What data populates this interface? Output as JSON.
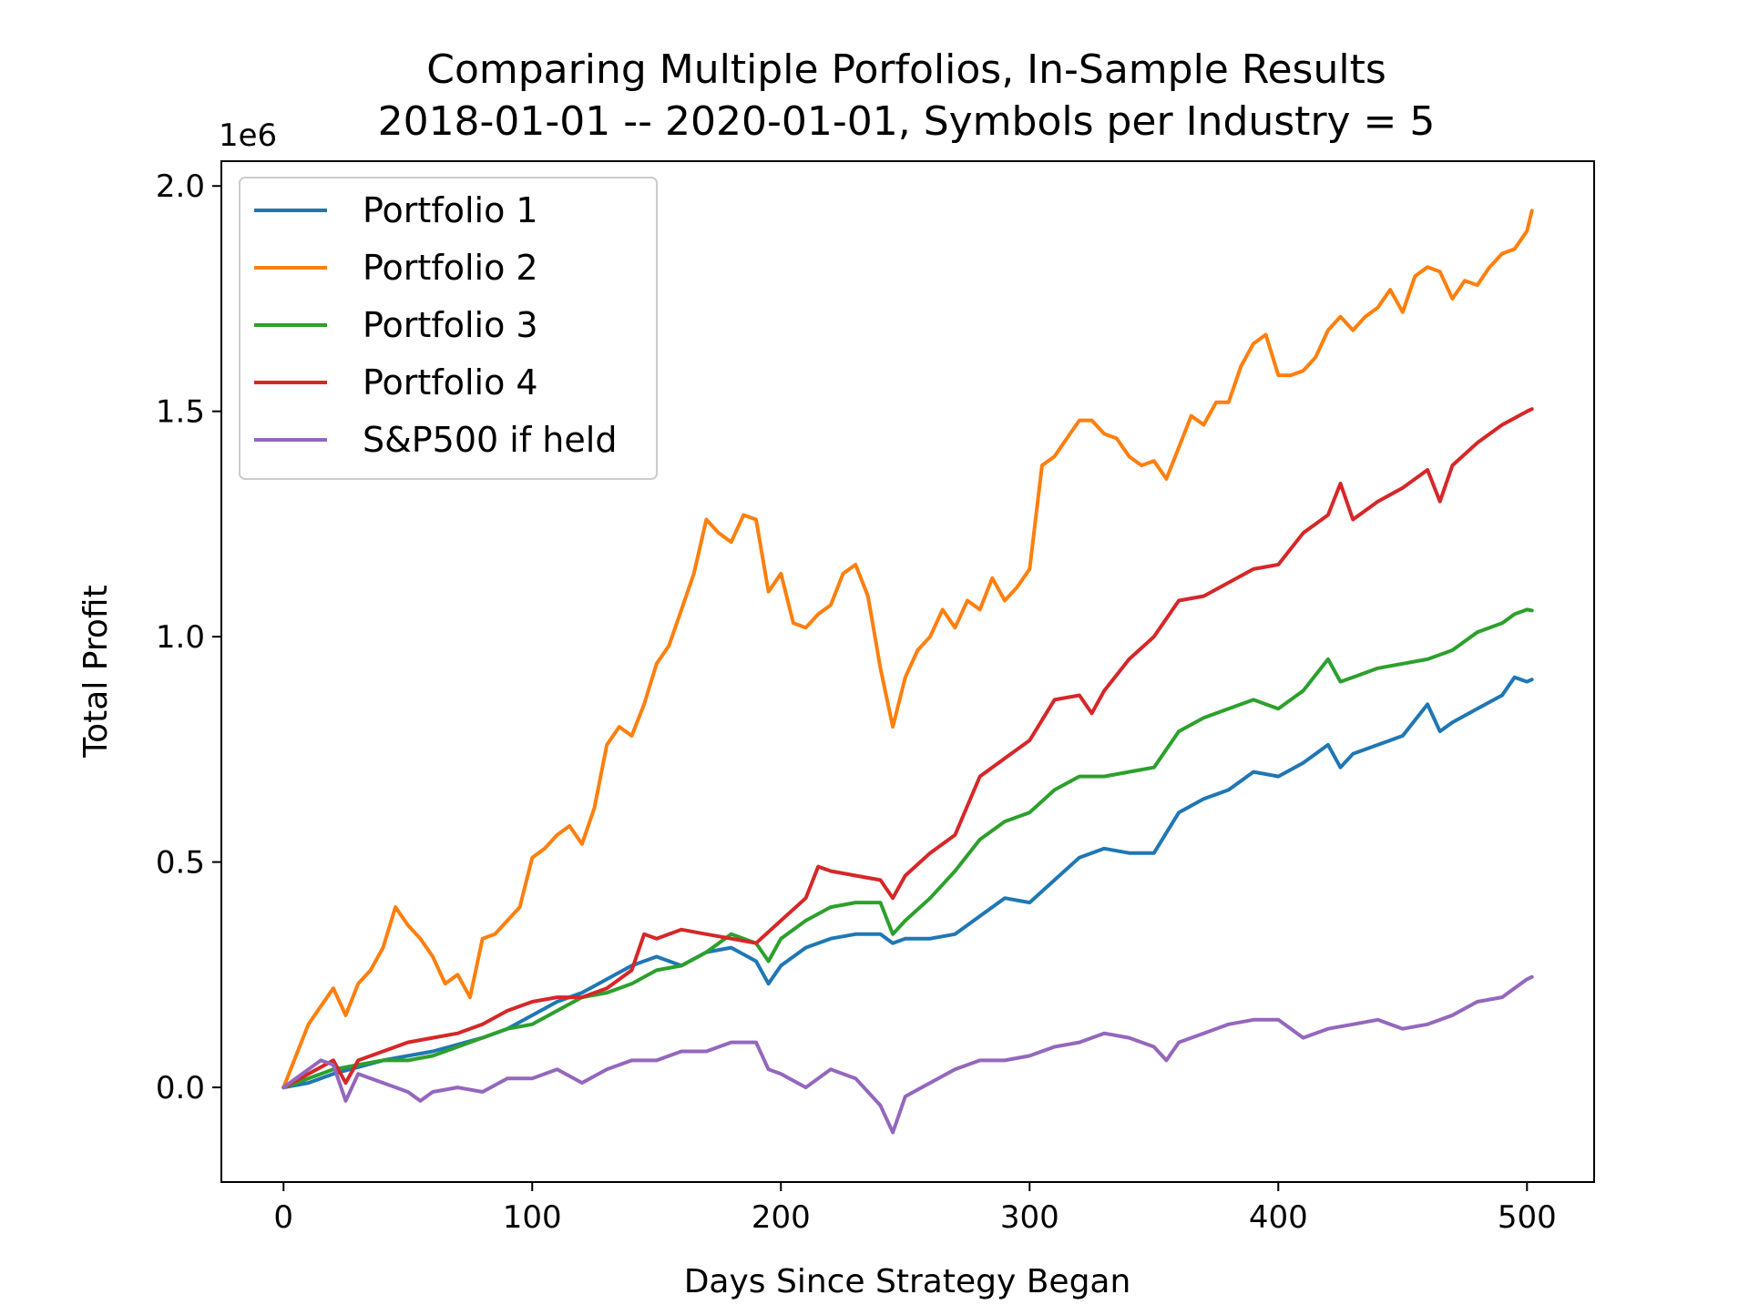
{
  "chart_data": {
    "type": "line",
    "title": "Comparing Multiple Porfolios, In-Sample Results",
    "subtitle": "2018-01-01 -- 2020-01-01, Symbols per Industry = 5",
    "xlabel": "Days Since Strategy Began",
    "ylabel": "Total Profit",
    "y_offset_label": "1e6",
    "xlim": [
      -25,
      527
    ],
    "ylim": [
      -210000,
      2055000
    ],
    "x_ticks": [
      0,
      100,
      200,
      300,
      400,
      500
    ],
    "x_tick_labels": [
      "0",
      "100",
      "200",
      "300",
      "400",
      "500"
    ],
    "y_ticks": [
      0,
      500000,
      1000000,
      1500000,
      2000000
    ],
    "y_tick_labels": [
      "0.0",
      "0.5",
      "1.0",
      "1.5",
      "2.0"
    ],
    "grid": false,
    "legend_position": "top-left",
    "series": [
      {
        "name": "Portfolio 1",
        "color": "#1f77b4",
        "x": [
          0,
          10,
          20,
          30,
          40,
          50,
          60,
          70,
          80,
          90,
          100,
          110,
          120,
          130,
          140,
          150,
          160,
          170,
          180,
          190,
          195,
          200,
          210,
          220,
          230,
          240,
          245,
          250,
          260,
          270,
          280,
          290,
          300,
          310,
          320,
          330,
          340,
          350,
          360,
          370,
          380,
          390,
          400,
          410,
          420,
          425,
          430,
          440,
          450,
          460,
          465,
          470,
          480,
          490,
          495,
          500,
          502
        ],
        "y": [
          0,
          10000,
          30000,
          45000,
          60000,
          70000,
          80000,
          95000,
          110000,
          130000,
          160000,
          190000,
          210000,
          240000,
          270000,
          290000,
          270000,
          300000,
          310000,
          280000,
          230000,
          270000,
          310000,
          330000,
          340000,
          340000,
          320000,
          330000,
          330000,
          340000,
          380000,
          420000,
          410000,
          460000,
          510000,
          530000,
          520000,
          520000,
          610000,
          640000,
          660000,
          700000,
          690000,
          720000,
          760000,
          710000,
          740000,
          760000,
          780000,
          850000,
          790000,
          810000,
          840000,
          870000,
          910000,
          900000,
          905000
        ]
      },
      {
        "name": "Portfolio 2",
        "color": "#ff7f0e",
        "x": [
          0,
          5,
          10,
          15,
          20,
          25,
          30,
          35,
          40,
          45,
          50,
          55,
          60,
          65,
          70,
          75,
          80,
          85,
          90,
          95,
          100,
          105,
          110,
          115,
          120,
          125,
          130,
          135,
          140,
          145,
          150,
          155,
          160,
          165,
          170,
          175,
          180,
          185,
          190,
          195,
          200,
          205,
          210,
          215,
          220,
          225,
          230,
          235,
          240,
          245,
          250,
          255,
          260,
          265,
          270,
          275,
          280,
          285,
          290,
          295,
          300,
          305,
          310,
          315,
          320,
          325,
          330,
          335,
          340,
          345,
          350,
          355,
          360,
          365,
          370,
          375,
          380,
          385,
          390,
          395,
          400,
          405,
          410,
          415,
          420,
          425,
          430,
          435,
          440,
          445,
          450,
          455,
          460,
          465,
          470,
          475,
          480,
          485,
          490,
          495,
          500,
          502
        ],
        "y": [
          0,
          70000,
          140000,
          180000,
          220000,
          160000,
          230000,
          260000,
          310000,
          400000,
          360000,
          330000,
          290000,
          230000,
          250000,
          200000,
          330000,
          340000,
          370000,
          400000,
          510000,
          530000,
          560000,
          580000,
          540000,
          620000,
          760000,
          800000,
          780000,
          850000,
          940000,
          980000,
          1060000,
          1140000,
          1260000,
          1230000,
          1210000,
          1270000,
          1260000,
          1100000,
          1140000,
          1030000,
          1020000,
          1050000,
          1070000,
          1140000,
          1160000,
          1090000,
          930000,
          800000,
          910000,
          970000,
          1000000,
          1060000,
          1020000,
          1080000,
          1060000,
          1130000,
          1080000,
          1110000,
          1150000,
          1380000,
          1400000,
          1440000,
          1480000,
          1480000,
          1450000,
          1440000,
          1400000,
          1380000,
          1390000,
          1350000,
          1420000,
          1490000,
          1470000,
          1520000,
          1520000,
          1600000,
          1650000,
          1670000,
          1580000,
          1580000,
          1590000,
          1620000,
          1680000,
          1710000,
          1680000,
          1710000,
          1730000,
          1770000,
          1720000,
          1800000,
          1820000,
          1810000,
          1750000,
          1790000,
          1780000,
          1820000,
          1850000,
          1860000,
          1900000,
          1945000
        ]
      },
      {
        "name": "Portfolio 3",
        "color": "#2ca02c",
        "x": [
          0,
          10,
          20,
          30,
          40,
          50,
          60,
          70,
          80,
          90,
          100,
          110,
          120,
          130,
          140,
          150,
          160,
          170,
          180,
          190,
          195,
          200,
          210,
          220,
          230,
          240,
          245,
          250,
          260,
          270,
          280,
          290,
          300,
          310,
          320,
          330,
          340,
          350,
          360,
          370,
          380,
          390,
          400,
          410,
          420,
          425,
          430,
          440,
          450,
          460,
          470,
          480,
          490,
          495,
          500,
          502
        ],
        "y": [
          0,
          20000,
          40000,
          50000,
          60000,
          60000,
          70000,
          90000,
          110000,
          130000,
          140000,
          170000,
          200000,
          210000,
          230000,
          260000,
          270000,
          300000,
          340000,
          320000,
          280000,
          330000,
          370000,
          400000,
          410000,
          410000,
          340000,
          370000,
          420000,
          480000,
          550000,
          590000,
          610000,
          660000,
          690000,
          690000,
          700000,
          710000,
          790000,
          820000,
          840000,
          860000,
          840000,
          880000,
          950000,
          900000,
          910000,
          930000,
          940000,
          950000,
          970000,
          1010000,
          1030000,
          1050000,
          1060000,
          1058000
        ]
      },
      {
        "name": "Portfolio 4",
        "color": "#d62728",
        "x": [
          0,
          10,
          20,
          25,
          30,
          40,
          50,
          60,
          70,
          80,
          90,
          100,
          110,
          120,
          130,
          140,
          145,
          150,
          160,
          170,
          180,
          190,
          200,
          210,
          215,
          220,
          230,
          240,
          245,
          250,
          260,
          270,
          280,
          290,
          300,
          310,
          320,
          325,
          330,
          340,
          350,
          360,
          370,
          380,
          390,
          400,
          410,
          420,
          425,
          430,
          440,
          450,
          460,
          465,
          470,
          480,
          490,
          500,
          502
        ],
        "y": [
          0,
          30000,
          60000,
          10000,
          60000,
          80000,
          100000,
          110000,
          120000,
          140000,
          170000,
          190000,
          200000,
          200000,
          220000,
          260000,
          340000,
          330000,
          350000,
          340000,
          330000,
          320000,
          370000,
          420000,
          490000,
          480000,
          470000,
          460000,
          420000,
          470000,
          520000,
          560000,
          690000,
          730000,
          770000,
          860000,
          870000,
          830000,
          880000,
          950000,
          1000000,
          1080000,
          1090000,
          1120000,
          1150000,
          1160000,
          1230000,
          1270000,
          1340000,
          1260000,
          1300000,
          1330000,
          1370000,
          1300000,
          1380000,
          1430000,
          1470000,
          1500000,
          1505000
        ]
      },
      {
        "name": "S&P500 if held",
        "color": "#9467bd",
        "x": [
          0,
          10,
          15,
          20,
          25,
          30,
          40,
          50,
          55,
          60,
          70,
          80,
          90,
          100,
          110,
          120,
          130,
          140,
          150,
          160,
          170,
          180,
          190,
          195,
          200,
          210,
          220,
          230,
          240,
          245,
          250,
          260,
          270,
          280,
          290,
          300,
          310,
          320,
          330,
          340,
          350,
          355,
          360,
          370,
          380,
          390,
          400,
          410,
          420,
          430,
          440,
          450,
          460,
          470,
          480,
          490,
          500,
          502
        ],
        "y": [
          0,
          40000,
          60000,
          50000,
          -30000,
          30000,
          10000,
          -10000,
          -30000,
          -10000,
          0,
          -10000,
          20000,
          20000,
          40000,
          10000,
          40000,
          60000,
          60000,
          80000,
          80000,
          100000,
          100000,
          40000,
          30000,
          0,
          40000,
          20000,
          -40000,
          -100000,
          -20000,
          10000,
          40000,
          60000,
          60000,
          70000,
          90000,
          100000,
          120000,
          110000,
          90000,
          60000,
          100000,
          120000,
          140000,
          150000,
          150000,
          110000,
          130000,
          140000,
          150000,
          130000,
          140000,
          160000,
          190000,
          200000,
          240000,
          245000
        ]
      }
    ]
  }
}
